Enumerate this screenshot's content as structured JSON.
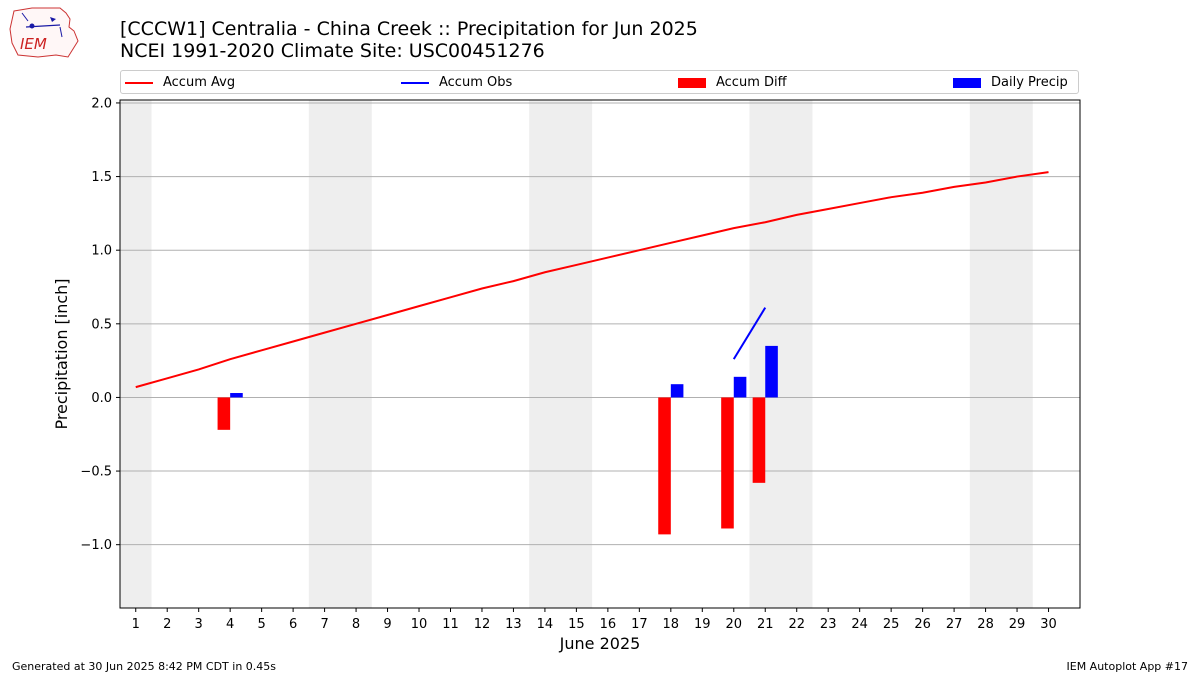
{
  "header": {
    "title_line1": "[CCCW1] Centralia - China Creek :: Precipitation for Jun 2025",
    "title_line2": "NCEI 1991-2020 Climate Site: USC00451276"
  },
  "logo": {
    "text": "IEM",
    "icon": "iem-logo-icon"
  },
  "footer": {
    "left": "Generated at 30 Jun 2025 8:42 PM CDT in 0.45s",
    "right": "IEM Autoplot App #17"
  },
  "legend": [
    {
      "label": "Accum Avg",
      "kind": "line",
      "color": "#ff0000"
    },
    {
      "label": "Accum Obs",
      "kind": "line",
      "color": "#0000ff"
    },
    {
      "label": "Accum Diff",
      "kind": "bar",
      "color": "#ff0000"
    },
    {
      "label": "Daily Precip",
      "kind": "bar",
      "color": "#0000ff"
    }
  ],
  "chart_data": {
    "type": "bar",
    "xlabel": "June 2025",
    "ylabel": "Precipitation [inch]",
    "ylim": [
      -1.43,
      2.02
    ],
    "xlim": [
      0.5,
      31
    ],
    "grid": "horizontal",
    "legend_position": "top",
    "x": [
      1,
      2,
      3,
      4,
      5,
      6,
      7,
      8,
      9,
      10,
      11,
      12,
      13,
      14,
      15,
      16,
      17,
      18,
      19,
      20,
      21,
      22,
      23,
      24,
      25,
      26,
      27,
      28,
      29,
      30
    ],
    "y_ticks": [
      {
        "value": -1.0,
        "label": "−1.0"
      },
      {
        "value": -0.5,
        "label": "−0.5"
      },
      {
        "value": 0.0,
        "label": "0.0"
      },
      {
        "value": 0.5,
        "label": "0.5"
      },
      {
        "value": 1.0,
        "label": "1.0"
      },
      {
        "value": 1.5,
        "label": "1.5"
      },
      {
        "value": 2.0,
        "label": "2.0"
      }
    ],
    "weekend_bands": [
      [
        0.5,
        1.5
      ],
      [
        6.5,
        8.5
      ],
      [
        13.5,
        15.5
      ],
      [
        20.5,
        22.5
      ],
      [
        27.5,
        29.5
      ]
    ],
    "band_color": "#eeeeee",
    "series": [
      {
        "name": "Accum Avg",
        "kind": "line",
        "color": "#ff0000",
        "x": [
          1,
          2,
          3,
          4,
          5,
          6,
          7,
          8,
          9,
          10,
          11,
          12,
          13,
          14,
          15,
          16,
          17,
          18,
          19,
          20,
          21,
          22,
          23,
          24,
          25,
          26,
          27,
          28,
          29,
          30
        ],
        "values": [
          0.07,
          0.13,
          0.19,
          0.26,
          0.32,
          0.38,
          0.44,
          0.5,
          0.56,
          0.62,
          0.68,
          0.74,
          0.79,
          0.85,
          0.9,
          0.95,
          1.0,
          1.05,
          1.1,
          1.15,
          1.19,
          1.24,
          1.28,
          1.32,
          1.36,
          1.39,
          1.43,
          1.46,
          1.5,
          1.53
        ]
      },
      {
        "name": "Accum Obs",
        "kind": "line",
        "color": "#0000ff",
        "x": [
          20,
          21
        ],
        "values": [
          0.26,
          0.61
        ]
      },
      {
        "name": "Accum Diff",
        "kind": "bar",
        "color": "#ff0000",
        "x": [
          4,
          18,
          20,
          21
        ],
        "values": [
          -0.22,
          -0.93,
          -0.89,
          -0.58
        ]
      },
      {
        "name": "Daily Precip",
        "kind": "bar",
        "color": "#0000ff",
        "x": [
          4,
          18,
          20,
          21
        ],
        "values": [
          0.03,
          0.09,
          0.14,
          0.35
        ]
      }
    ]
  }
}
